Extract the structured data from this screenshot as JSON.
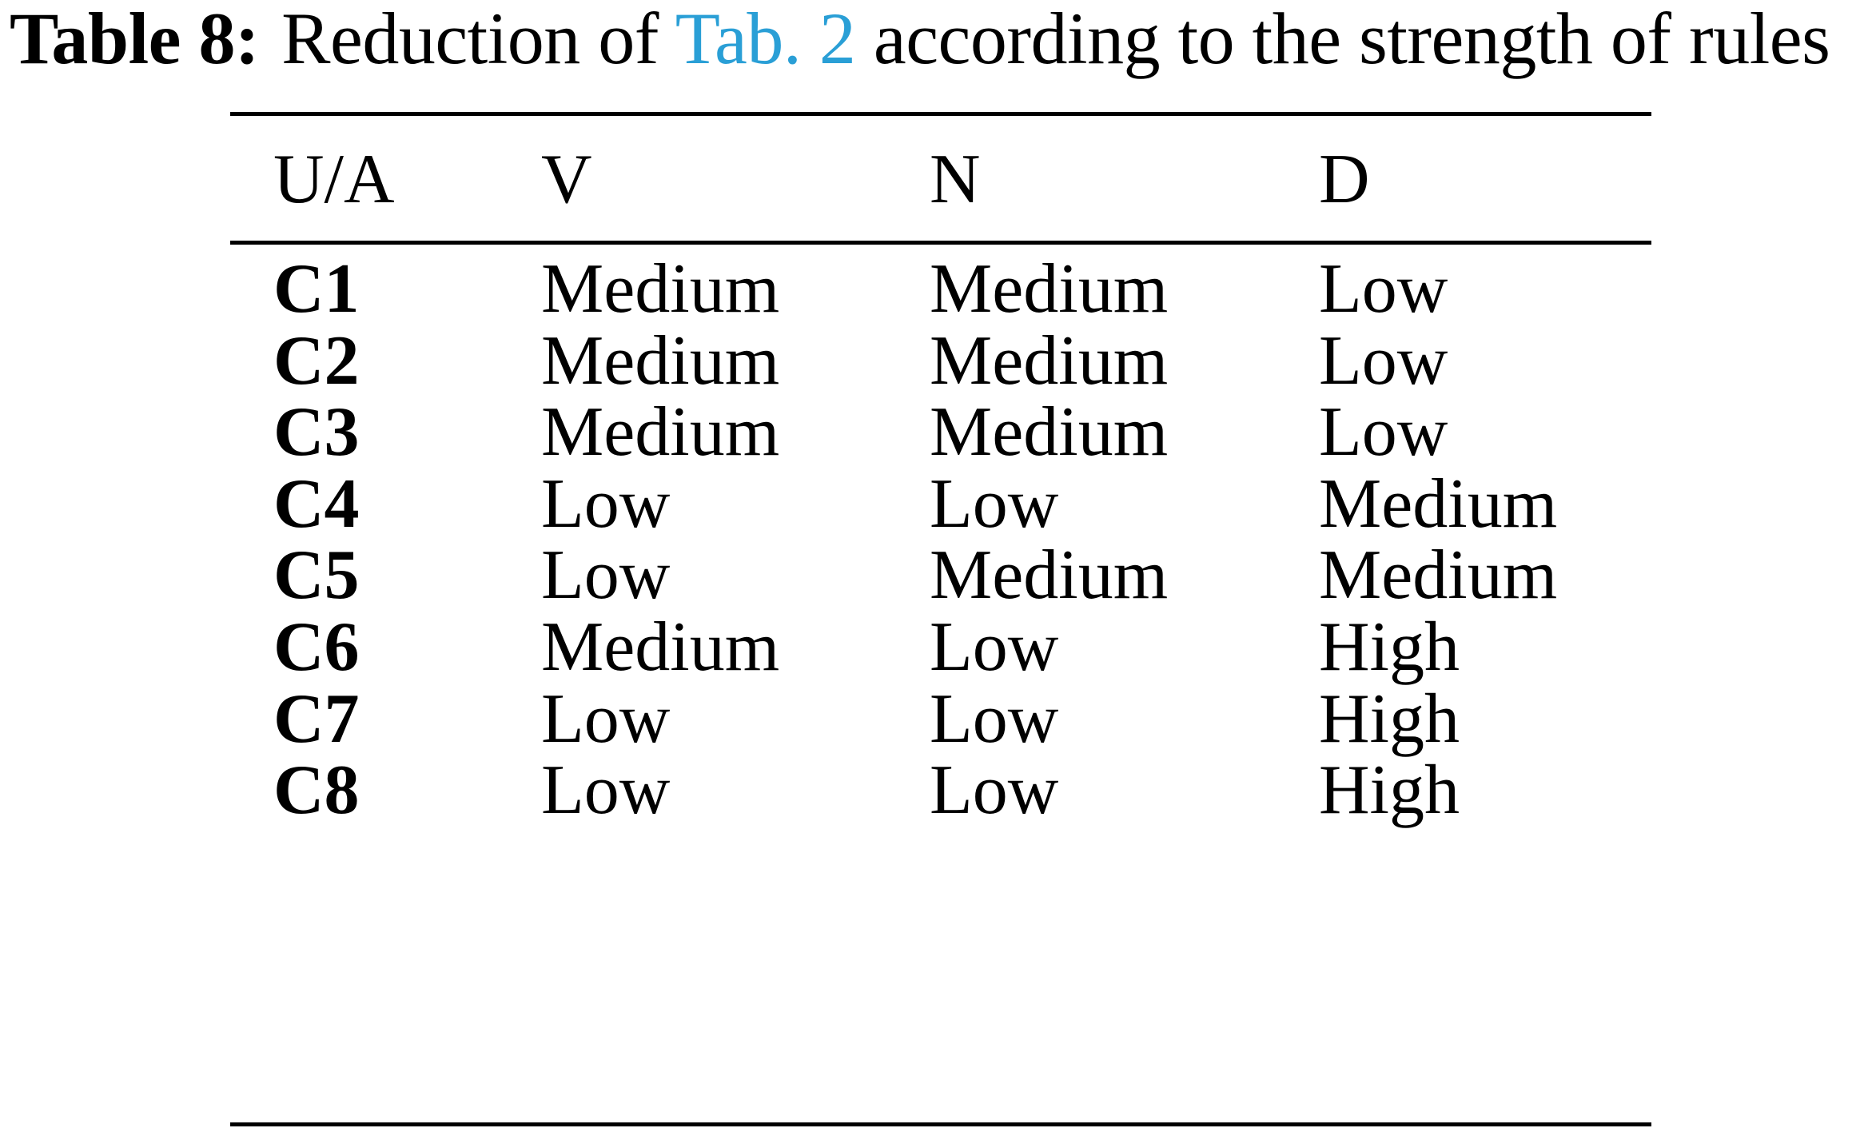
{
  "caption": {
    "label": "Table 8:",
    "text_before": "Reduction of",
    "reference": "Tab. 2",
    "text_after": "according to the strength of rules"
  },
  "table": {
    "headers": [
      "U/A",
      "V",
      "N",
      "D"
    ],
    "rows": [
      [
        "C1",
        "Medium",
        "Medium",
        "Low"
      ],
      [
        "C2",
        "Medium",
        "Medium",
        "Low"
      ],
      [
        "C3",
        "Medium",
        "Medium",
        "Low"
      ],
      [
        "C4",
        "Low",
        "Low",
        "Medium"
      ],
      [
        "C5",
        "Low",
        "Medium",
        "Medium"
      ],
      [
        "C6",
        "Medium",
        "Low",
        "High"
      ],
      [
        "C7",
        "Low",
        "Low",
        "High"
      ],
      [
        "C8",
        "Low",
        "Low",
        "High"
      ]
    ]
  },
  "colors": {
    "reference_link": "#2a9fd6",
    "text": "#000000"
  }
}
